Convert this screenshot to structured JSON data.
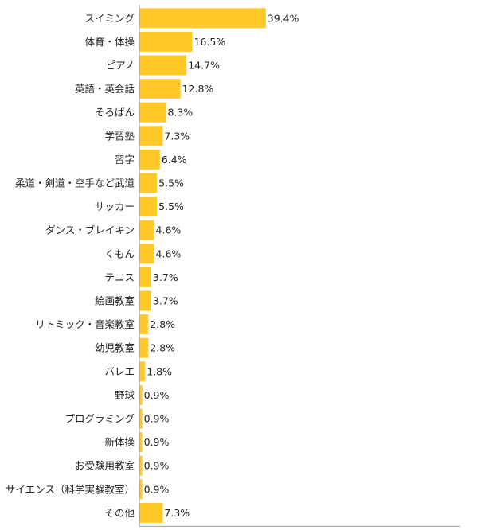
{
  "chart_data": {
    "type": "bar",
    "orientation": "horizontal",
    "title": "",
    "xlabel": "",
    "ylabel": "",
    "xlim": [
      0,
      100
    ],
    "grid": false,
    "legend": "none",
    "bar_color": "#ffc929",
    "axis_color": "#999999",
    "categories": [
      "スイミング",
      "体育・体操",
      "ピアノ",
      "英語・英会話",
      "そろばん",
      "学習塾",
      "習字",
      "柔道・剣道・空手など武道",
      "サッカー",
      "ダンス・ブレイキン",
      "くもん",
      "テニス",
      "絵画教室",
      "リトミック・音楽教室",
      "幼児教室",
      "バレエ",
      "野球",
      "プログラミング",
      "新体操",
      "お受験用教室",
      "サイエンス（科学実験教室）",
      "その他"
    ],
    "values": [
      39.4,
      16.5,
      14.7,
      12.8,
      8.3,
      7.3,
      6.4,
      5.5,
      5.5,
      4.6,
      4.6,
      3.7,
      3.7,
      2.8,
      2.8,
      1.8,
      0.9,
      0.9,
      0.9,
      0.9,
      0.9,
      7.3
    ],
    "value_labels": [
      "39.4%",
      "16.5%",
      "14.7%",
      "12.8%",
      "8.3%",
      "7.3%",
      "6.4%",
      "5.5%",
      "5.5%",
      "4.6%",
      "4.6%",
      "3.7%",
      "3.7%",
      "2.8%",
      "2.8%",
      "1.8%",
      "0.9%",
      "0.9%",
      "0.9%",
      "0.9%",
      "0.9%",
      "7.3%"
    ]
  }
}
